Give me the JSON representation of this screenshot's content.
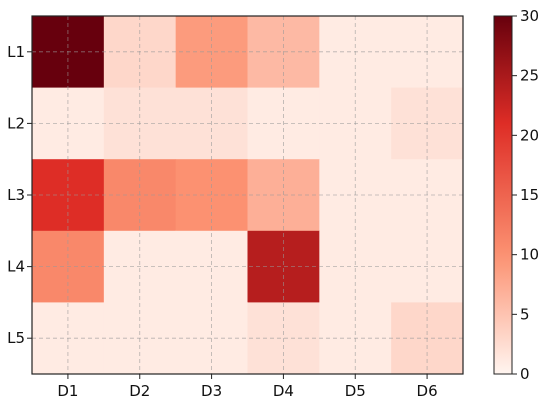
{
  "chart_data": {
    "type": "heatmap",
    "x_categories": [
      "D1",
      "D2",
      "D3",
      "D4",
      "D5",
      "D6"
    ],
    "y_categories": [
      "L1",
      "L2",
      "L3",
      "L4",
      "L5"
    ],
    "values": [
      [
        30,
        3,
        9,
        6,
        1,
        1
      ],
      [
        1,
        2,
        2,
        1,
        1,
        2
      ],
      [
        21,
        11,
        10,
        7,
        1,
        1
      ],
      [
        11,
        1,
        1,
        24,
        1,
        1
      ],
      [
        1,
        1,
        1,
        2,
        1,
        3
      ]
    ],
    "colorbar": {
      "min": 0,
      "max": 30,
      "ticks": [
        0,
        5,
        10,
        15,
        20,
        25,
        30
      ]
    },
    "colormap": {
      "low": "#fff5f0",
      "mid1": "#fc9272",
      "mid2": "#de2d26",
      "high": "#67000d"
    },
    "grid": true
  }
}
